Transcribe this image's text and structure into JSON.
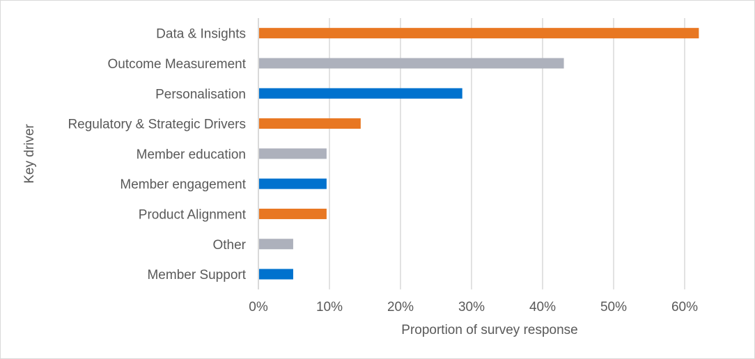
{
  "chart_data": {
    "type": "bar",
    "orientation": "horizontal",
    "title": "",
    "xlabel": "Proportion of survey response",
    "ylabel": "Key driver",
    "xlim": [
      0,
      0.6
    ],
    "xticks": [
      0,
      0.1,
      0.2,
      0.3,
      0.4,
      0.5,
      0.6
    ],
    "xtick_labels": [
      "0%",
      "10%",
      "20%",
      "30%",
      "40%",
      "50%",
      "60%"
    ],
    "grid": "vertical",
    "legend": "none",
    "categories": [
      "Data & Insights",
      "Outcome Measurement",
      "Personalisation",
      "Regulatory & Strategic Drivers",
      "Member education",
      "Member engagement",
      "Product Alignment",
      "Other",
      "Member Support"
    ],
    "values": [
      0.619,
      0.429,
      0.286,
      0.143,
      0.095,
      0.095,
      0.095,
      0.048,
      0.048
    ],
    "bar_colors": [
      "#E87722",
      "#ADB1BC",
      "#0072CE",
      "#E87722",
      "#ADB1BC",
      "#0072CE",
      "#E87722",
      "#ADB1BC",
      "#0072CE"
    ]
  }
}
